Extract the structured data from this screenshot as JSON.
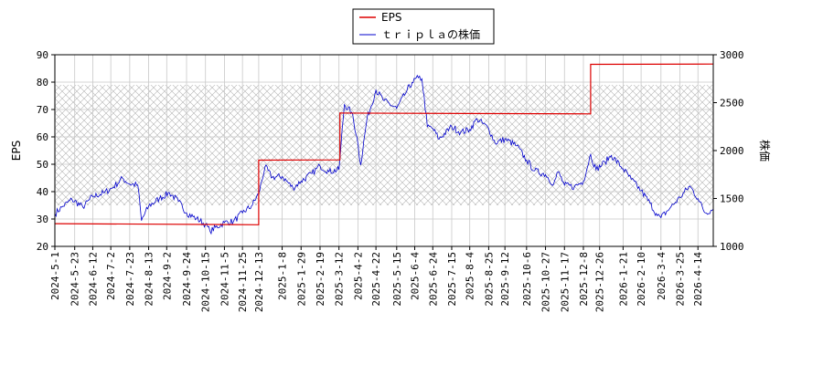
{
  "chart_data": {
    "type": "line",
    "legend": {
      "placement": "top-center",
      "entries": [
        "EPS",
        "ｔｒｉｐｌａの株価"
      ]
    },
    "colors": {
      "eps": "#dd0000",
      "price": "#0000cc",
      "band_hatch": "#b4b4b4",
      "grid": "#c8c8c8"
    },
    "grid": true,
    "left_axis": {
      "label": "EPS",
      "range": [
        20,
        90
      ],
      "ticks": [
        20,
        30,
        40,
        50,
        60,
        70,
        80,
        90
      ]
    },
    "right_axis": {
      "label": "株価",
      "range": [
        1000,
        3000
      ],
      "ticks": [
        1000,
        1500,
        2000,
        2500,
        3000
      ]
    },
    "x_range": [
      "2024-05-01",
      "2026-05-01"
    ],
    "x_ticks": [
      "2024-5-1",
      "2024-5-23",
      "2024-6-12",
      "2024-7-2",
      "2024-7-23",
      "2024-8-13",
      "2024-9-2",
      "2024-9-24",
      "2024-10-15",
      "2024-11-5",
      "2024-11-25",
      "2024-12-13",
      "2025-1-8",
      "2025-1-29",
      "2025-2-19",
      "2025-3-12",
      "2025-4-2",
      "2025-4-22",
      "2025-5-15",
      "2025-6-4",
      "2025-6-24",
      "2025-7-15",
      "2025-8-4",
      "2025-8-25",
      "2025-9-12",
      "2025-10-6",
      "2025-10-27",
      "2025-11-17",
      "2025-12-8",
      "2025-12-26",
      "2026-1-21",
      "2026-2-10",
      "2026-3-4",
      "2026-3-25",
      "2026-4-14"
    ],
    "shaded_band": {
      "axis": "left",
      "from": 35,
      "to": 79
    },
    "series": [
      {
        "name": "EPS",
        "axis": "left",
        "step": true,
        "points": [
          [
            "2024-05-01",
            28.3
          ],
          [
            "2024-12-13",
            27.9
          ],
          [
            "2024-12-13",
            51.5
          ],
          [
            "2025-03-13",
            51.6
          ],
          [
            "2025-03-13",
            68.7
          ],
          [
            "2025-12-16",
            68.4
          ],
          [
            "2025-12-16",
            86.5
          ],
          [
            "2026-05-01",
            86.6
          ]
        ]
      },
      {
        "name": "ｔｒｉｐｌａの株価",
        "axis": "right",
        "points": [
          [
            "2024-05-01",
            1340
          ],
          [
            "2024-05-10",
            1420
          ],
          [
            "2024-05-20",
            1490
          ],
          [
            "2024-06-01",
            1410
          ],
          [
            "2024-06-12",
            1520
          ],
          [
            "2024-06-25",
            1560
          ],
          [
            "2024-07-05",
            1620
          ],
          [
            "2024-07-15",
            1710
          ],
          [
            "2024-07-23",
            1650
          ],
          [
            "2024-08-01",
            1640
          ],
          [
            "2024-08-05",
            1270
          ],
          [
            "2024-08-13",
            1420
          ],
          [
            "2024-08-25",
            1500
          ],
          [
            "2024-09-05",
            1560
          ],
          [
            "2024-09-15",
            1470
          ],
          [
            "2024-09-24",
            1350
          ],
          [
            "2024-10-05",
            1290
          ],
          [
            "2024-10-15",
            1230
          ],
          [
            "2024-10-20",
            1160
          ],
          [
            "2024-11-05",
            1250
          ],
          [
            "2024-11-15",
            1260
          ],
          [
            "2024-11-25",
            1350
          ],
          [
            "2024-12-05",
            1420
          ],
          [
            "2024-12-13",
            1550
          ],
          [
            "2024-12-20",
            1830
          ],
          [
            "2024-12-28",
            1720
          ],
          [
            "2025-01-08",
            1730
          ],
          [
            "2025-01-20",
            1610
          ],
          [
            "2025-01-29",
            1680
          ],
          [
            "2025-02-10",
            1760
          ],
          [
            "2025-02-19",
            1840
          ],
          [
            "2025-03-01",
            1780
          ],
          [
            "2025-03-12",
            1800
          ],
          [
            "2025-03-18",
            2480
          ],
          [
            "2025-03-26",
            2400
          ],
          [
            "2025-04-01",
            2140
          ],
          [
            "2025-04-05",
            1850
          ],
          [
            "2025-04-12",
            2330
          ],
          [
            "2025-04-22",
            2630
          ],
          [
            "2025-05-01",
            2520
          ],
          [
            "2025-05-15",
            2440
          ],
          [
            "2025-05-25",
            2600
          ],
          [
            "2025-06-01",
            2710
          ],
          [
            "2025-06-08",
            2760
          ],
          [
            "2025-06-12",
            2750
          ],
          [
            "2025-06-18",
            2250
          ],
          [
            "2025-06-24",
            2230
          ],
          [
            "2025-07-01",
            2120
          ],
          [
            "2025-07-15",
            2250
          ],
          [
            "2025-07-25",
            2190
          ],
          [
            "2025-08-04",
            2220
          ],
          [
            "2025-08-12",
            2330
          ],
          [
            "2025-08-25",
            2230
          ],
          [
            "2025-09-01",
            2080
          ],
          [
            "2025-09-12",
            2120
          ],
          [
            "2025-09-25",
            2050
          ],
          [
            "2025-10-06",
            1900
          ],
          [
            "2025-10-15",
            1790
          ],
          [
            "2025-10-27",
            1750
          ],
          [
            "2025-11-05",
            1650
          ],
          [
            "2025-11-10",
            1780
          ],
          [
            "2025-11-17",
            1640
          ],
          [
            "2025-11-28",
            1620
          ],
          [
            "2025-12-08",
            1680
          ],
          [
            "2025-12-16",
            1960
          ],
          [
            "2025-12-22",
            1800
          ],
          [
            "2026-01-01",
            1880
          ],
          [
            "2026-01-08",
            1950
          ],
          [
            "2026-01-21",
            1810
          ],
          [
            "2026-01-30",
            1700
          ],
          [
            "2026-02-10",
            1580
          ],
          [
            "2026-02-20",
            1450
          ],
          [
            "2026-02-28",
            1320
          ],
          [
            "2026-03-04",
            1300
          ],
          [
            "2026-03-14",
            1400
          ],
          [
            "2026-03-25",
            1510
          ],
          [
            "2026-04-05",
            1630
          ],
          [
            "2026-04-14",
            1500
          ],
          [
            "2026-04-22",
            1350
          ],
          [
            "2026-05-01",
            1390
          ]
        ]
      }
    ]
  }
}
